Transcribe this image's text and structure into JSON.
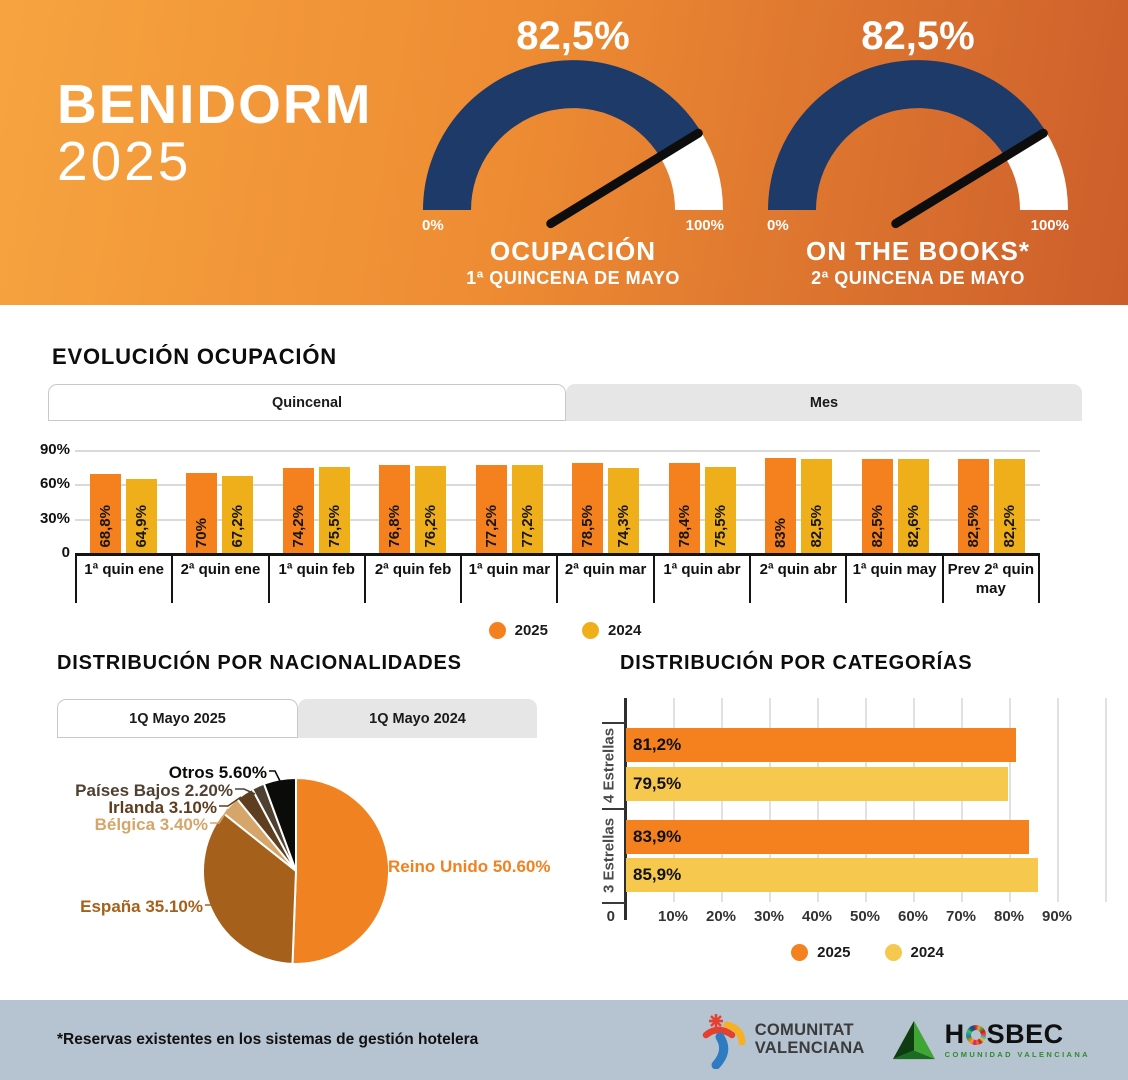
{
  "brand": {
    "line1": "BENIDORM",
    "line2": "2025"
  },
  "colors": {
    "navy": "#1E3A68",
    "orange_2025": "#F5811E",
    "gold_2024": "#EFAF1B",
    "yellow_2024_categories": "#F6C84E",
    "footer_bg": "#B6C3D0"
  },
  "sections": {
    "evolution": {
      "title": "EVOLUCIÓN OCUPACIÓN",
      "tabs": [
        {
          "label": "Quincenal",
          "active": true
        },
        {
          "label": "Mes",
          "active": false
        }
      ]
    },
    "nationalities": {
      "title": "DISTRIBUCIÓN POR NACIONALIDADES",
      "tabs": [
        {
          "label": "1Q Mayo 2025",
          "active": true
        },
        {
          "label": "1Q Mayo 2024",
          "active": false
        }
      ]
    },
    "categories": {
      "title": "DISTRIBUCIÓN POR CATEGORÍAS"
    }
  },
  "chart_data": [
    {
      "id": "gauge_ocupacion",
      "type": "gauge",
      "value": 82.5,
      "value_label": "82,5%",
      "min_label": "0%",
      "max_label": "100%",
      "title": "OCUPACIÓN",
      "subtitle": "1ª QUINCENA DE MAYO",
      "arc_color": "#1E3A68",
      "rest_color": "#FFFFFF",
      "needle_color": "#0D0D0D",
      "range": [
        0,
        100
      ]
    },
    {
      "id": "gauge_on_the_books",
      "type": "gauge",
      "value": 82.5,
      "value_label": "82,5%",
      "min_label": "0%",
      "max_label": "100%",
      "title": "ON THE BOOKS*",
      "subtitle": "2ª QUINCENA DE MAYO",
      "arc_color": "#1E3A68",
      "rest_color": "#FFFFFF",
      "needle_color": "#0D0D0D",
      "range": [
        0,
        100
      ]
    },
    {
      "id": "evolution",
      "type": "bar",
      "title": "EVOLUCIÓN OCUPACIÓN",
      "categories": [
        "1ª quin ene",
        "2ª quin ene",
        "1ª quin feb",
        "2ª quin feb",
        "1ª quin mar",
        "2ª quin mar",
        "1ª quin abr",
        "2ª quin abr",
        "1ª quin may",
        "Prev 2ª quin may"
      ],
      "series": [
        {
          "name": "2025",
          "color": "#F5811E",
          "values": [
            68.8,
            70,
            74.2,
            76.8,
            77.2,
            78.5,
            78.4,
            83,
            82.5,
            82.5
          ],
          "labels": [
            "68,8%",
            "70%",
            "74,2%",
            "76,8%",
            "77,2%",
            "78,5%",
            "78,4%",
            "83%",
            "82,5%",
            "82,5%"
          ]
        },
        {
          "name": "2024",
          "color": "#EFAF1B",
          "values": [
            64.9,
            67.2,
            75.5,
            76.2,
            77.2,
            74.3,
            75.5,
            82.5,
            82.6,
            82.2
          ],
          "labels": [
            "64,9%",
            "67,2%",
            "75,5%",
            "76,2%",
            "77,2%",
            "74,3%",
            "75,5%",
            "82,5%",
            "82,6%",
            "82,2%"
          ]
        }
      ],
      "yticks": [
        {
          "label": "90%",
          "v": 90
        },
        {
          "label": "60%",
          "v": 60
        },
        {
          "label": "30%",
          "v": 30
        },
        {
          "label": "0",
          "v": 0
        }
      ],
      "ylim": [
        0,
        90
      ],
      "grid": true,
      "legend_position": "bottom"
    },
    {
      "id": "nationalities_pie",
      "type": "pie",
      "title": "DISTRIBUCIÓN POR NACIONALIDADES",
      "slices": [
        {
          "label": "Reino Unido",
          "value": 50.6,
          "color": "#F08221",
          "label_text": "Reino Unido 50.60%"
        },
        {
          "label": "España",
          "value": 35.1,
          "color": "#A5611B",
          "label_text": "España 35.10%"
        },
        {
          "label": "Bélgica",
          "value": 3.4,
          "color": "#D5A569",
          "label_text": "Bélgica 3.40%"
        },
        {
          "label": "Irlanda",
          "value": 3.1,
          "color": "#5E3E1E",
          "label_text": "Irlanda 3.10%"
        },
        {
          "label": "Países Bajos",
          "value": 2.2,
          "color": "#4E4132",
          "label_text": "Países Bajos 2.20%"
        },
        {
          "label": "Otros",
          "value": 5.6,
          "color": "#0B0B09",
          "label_text": "Otros 5.60%"
        }
      ]
    },
    {
      "id": "categories_bars",
      "type": "bar-horizontal",
      "title": "DISTRIBUCIÓN POR CATEGORÍAS",
      "categories": [
        "4 Estrellas",
        "3 Estrellas"
      ],
      "series": [
        {
          "name": "2025",
          "color": "#F5811E",
          "values": [
            81.2,
            83.9
          ],
          "labels": [
            "81,2%",
            "83,9%"
          ]
        },
        {
          "name": "2024",
          "color": "#F6C84E",
          "values": [
            79.5,
            85.9
          ],
          "labels": [
            "79,5%",
            "85,9%"
          ]
        }
      ],
      "xticks": [
        "0",
        "10%",
        "20%",
        "30%",
        "40%",
        "50%",
        "60%",
        "70%",
        "80%",
        "90%"
      ],
      "xlim": [
        0,
        100
      ],
      "grid": true,
      "legend_position": "bottom"
    }
  ],
  "footer": {
    "note": "*Reservas existentes en los sistemas de gestión hotelera",
    "cv_logo": {
      "line1": "COMUNITAT",
      "line2": "VALENCIANA"
    },
    "hosbec_logo": {
      "left": "H",
      "right": "SBEC",
      "tagline": "COMUNIDAD VALENCIANA"
    }
  }
}
